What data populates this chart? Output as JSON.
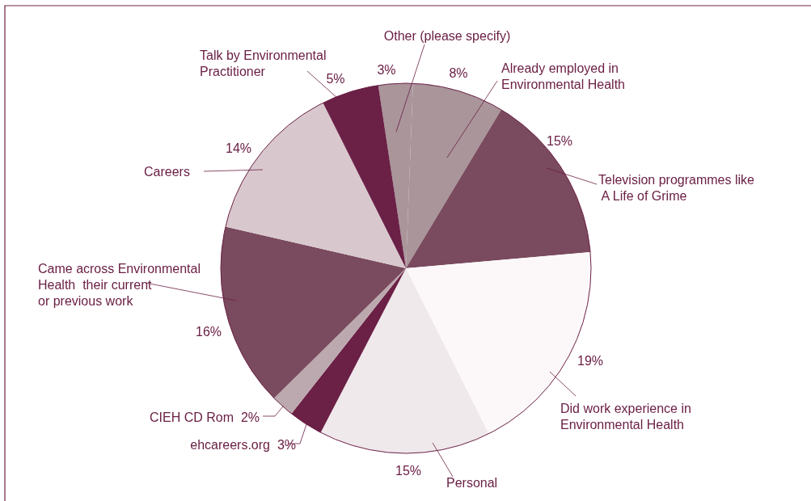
{
  "chart_data": {
    "type": "pie",
    "categories": [
      "Other (please specify)",
      "Already employed in\nEnvironmental Health",
      "Television programmes like\n A Life of Grime",
      "Did work experience in\nEnvironmental Health",
      "Personal",
      "ehcareers.org",
      "CIEH CD Rom",
      "Came across Environmental\nHealth  their current\nor previous work",
      "Careers",
      "Talk by Environmental\nPractitioner"
    ],
    "values": [
      3,
      8,
      15,
      19,
      15,
      3,
      2,
      16,
      14,
      5
    ],
    "value_labels": [
      "3%",
      "8%",
      "15%",
      "19%",
      "15%",
      "3%",
      "2%",
      "16%",
      "14%",
      "5%"
    ],
    "colors": [
      "#a9959a",
      "#a9959a",
      "#7a4a5e",
      "#fcf8f9",
      "#f0e9ec",
      "#6b2045",
      "#bca9af",
      "#7a4a5e",
      "#d8c8cd",
      "#6b2045"
    ],
    "data_labels": true
  }
}
